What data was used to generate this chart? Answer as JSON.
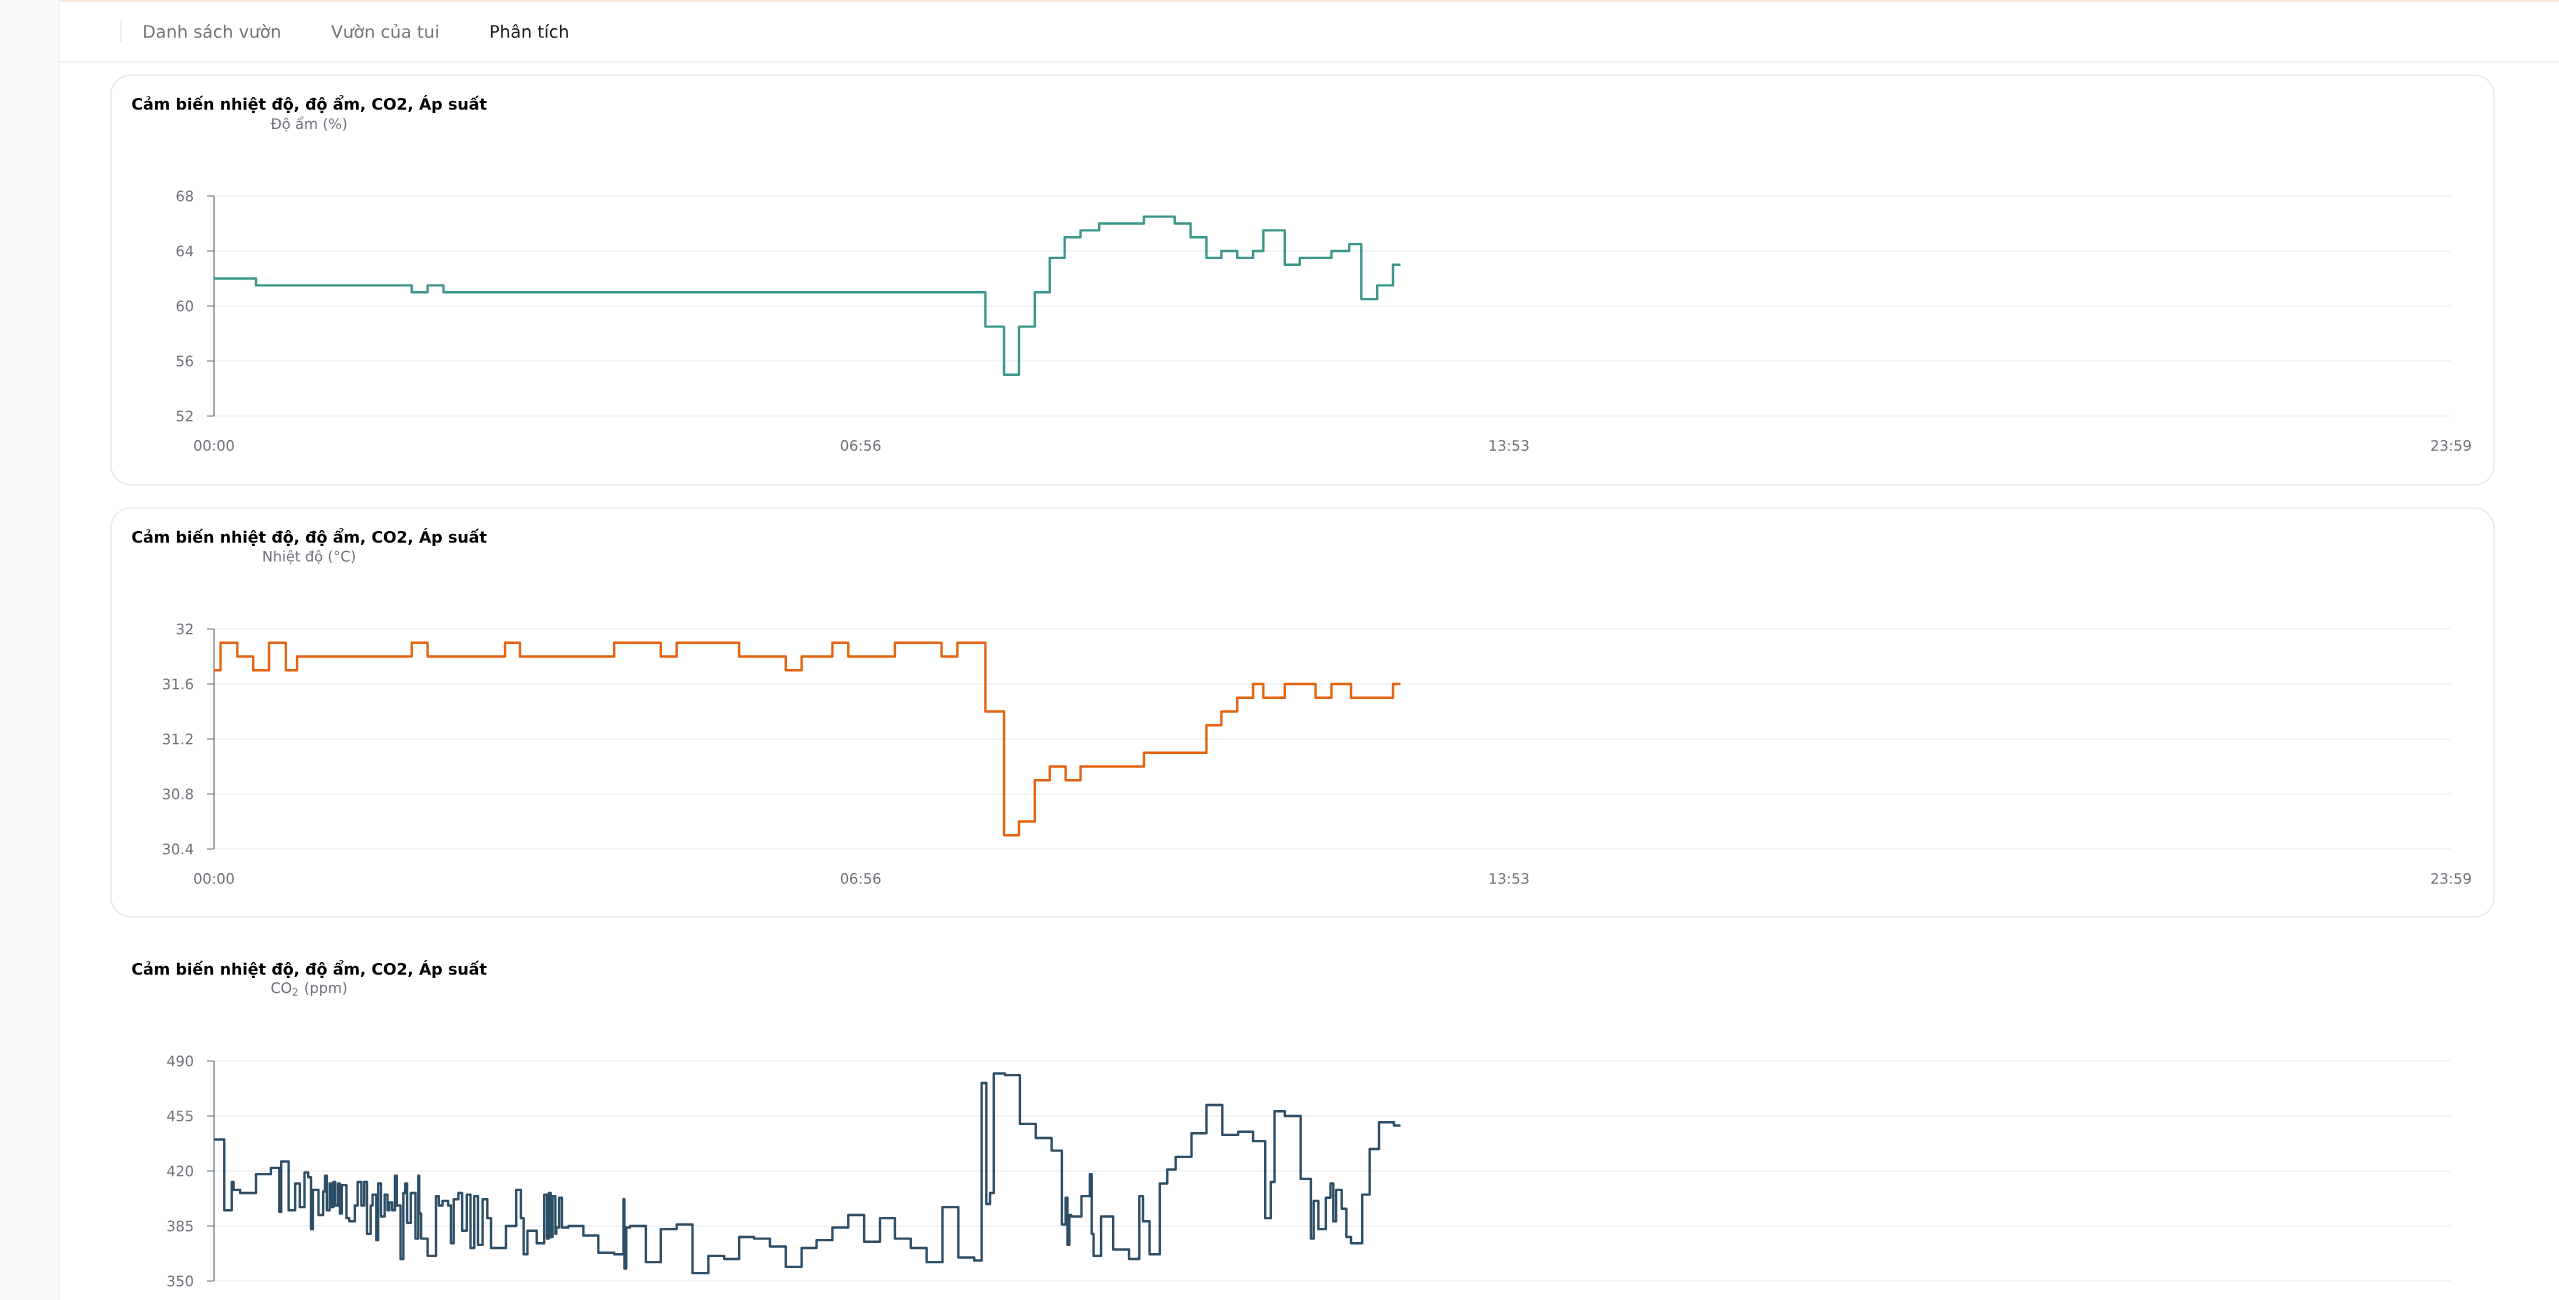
{
  "chart_data": [
    {
      "type": "other",
      "annotations": [
        "Danh sách vườn",
        "Vườn của tui",
        "Phân tích"
      ]
    },
    {
      "type": "step",
      "title": "Cảm biến nhiệt độ, độ ẩm, CO2, Áp suất",
      "ylabel": "Độ ẩm (%)",
      "color": "#3a968a",
      "x": [
        0,
        0.45,
        2.12,
        2.29,
        2.46,
        8.27,
        8.47,
        8.63,
        8.8,
        8.96,
        9.12,
        9.29,
        9.49,
        9.97,
        10.3,
        10.47,
        10.64,
        10.8,
        10.97,
        11.14,
        11.25,
        11.48,
        11.64,
        11.98,
        12.17,
        12.3,
        12.47,
        12.64,
        12.72
      ],
      "values": [
        62,
        61.5,
        61,
        61.5,
        61,
        58.5,
        55,
        58.5,
        61,
        63.5,
        65,
        65.5,
        66,
        66.5,
        66,
        65,
        63.5,
        64,
        63.5,
        64,
        65.5,
        63,
        63.5,
        64,
        64.5,
        60.5,
        61.5,
        63,
        63
      ],
      "xlim": [
        0,
        23.983
      ],
      "xticks": [
        {
          "value": 0,
          "label": "00:00"
        },
        {
          "value": 6.933,
          "label": "06:56"
        },
        {
          "value": 13.883,
          "label": "13:53"
        },
        {
          "value": 23.983,
          "label": "23:59"
        }
      ],
      "ylim": [
        52,
        68
      ],
      "yticks": [
        52,
        56,
        60,
        64,
        68
      ],
      "grid": "y"
    },
    {
      "type": "step",
      "title": "Cảm biến nhiệt độ, độ ẩm, CO2, Áp suất",
      "ylabel": "Nhiệt độ (°C)",
      "color": "#e4630e",
      "x": [
        0,
        0.07,
        0.25,
        0.42,
        0.59,
        0.77,
        0.89,
        2.12,
        2.29,
        3.12,
        3.28,
        4.29,
        4.79,
        4.96,
        5.63,
        6.13,
        6.3,
        6.63,
        6.8,
        7.3,
        7.8,
        7.97,
        8.27,
        8.47,
        8.63,
        8.8,
        8.96,
        9.13,
        9.29,
        9.97,
        10.64,
        10.8,
        10.97,
        11.14,
        11.25,
        11.48,
        11.81,
        11.98,
        12.19,
        12.64,
        12.72
      ],
      "values": [
        31.7,
        31.9,
        31.8,
        31.7,
        31.9,
        31.7,
        31.8,
        31.9,
        31.8,
        31.9,
        31.8,
        31.9,
        31.8,
        31.9,
        31.8,
        31.7,
        31.8,
        31.9,
        31.8,
        31.9,
        31.8,
        31.9,
        31.4,
        30.5,
        30.6,
        30.9,
        31.0,
        30.9,
        31.0,
        31.1,
        31.3,
        31.4,
        31.5,
        31.6,
        31.5,
        31.6,
        31.5,
        31.6,
        31.5,
        31.6,
        31.6
      ],
      "xlim": [
        0,
        23.983
      ],
      "xticks": [
        {
          "value": 0,
          "label": "00:00"
        },
        {
          "value": 6.933,
          "label": "06:56"
        },
        {
          "value": 13.883,
          "label": "13:53"
        },
        {
          "value": 23.983,
          "label": "23:59"
        }
      ],
      "ylim": [
        30.4,
        32
      ],
      "yticks": [
        30.4,
        30.8,
        31.2,
        31.6,
        32
      ],
      "grid": "y"
    },
    {
      "type": "step",
      "title": "Cảm biến nhiệt độ, độ ẩm, CO2, Áp suất",
      "ylabel": "CO$_{2}$ (ppm)",
      "color": "#2c4d66",
      "x": [
        0,
        0.11,
        0.19,
        0.21,
        0.28,
        0.45,
        0.61,
        0.7,
        0.72,
        0.8,
        0.87,
        0.92,
        0.97,
        1.01,
        1.04,
        1.06,
        1.12,
        1.17,
        1.19,
        1.21,
        1.24,
        1.26,
        1.28,
        1.3,
        1.33,
        1.35,
        1.37,
        1.42,
        1.45,
        1.51,
        1.54,
        1.58,
        1.61,
        1.64,
        1.68,
        1.7,
        1.74,
        1.76,
        1.79,
        1.83,
        1.86,
        1.88,
        1.91,
        1.94,
        1.96,
        2.0,
        2.03,
        2.05,
        2.07,
        2.11,
        2.16,
        2.19,
        2.2,
        2.22,
        2.29,
        2.38,
        2.41,
        2.45,
        2.51,
        2.54,
        2.57,
        2.62,
        2.66,
        2.71,
        2.75,
        2.79,
        2.83,
        2.88,
        2.93,
        2.97,
        3.13,
        3.24,
        3.29,
        3.32,
        3.36,
        3.46,
        3.54,
        3.57,
        3.59,
        3.61,
        3.63,
        3.66,
        3.67,
        3.7,
        3.73,
        3.8,
        3.96,
        4.12,
        4.29,
        4.39,
        4.4,
        4.42,
        4.46,
        4.63,
        4.79,
        4.96,
        5.13,
        5.3,
        5.47,
        5.63,
        5.79,
        5.96,
        6.13,
        6.3,
        6.46,
        6.63,
        6.8,
        6.97,
        7.14,
        7.3,
        7.47,
        7.64,
        7.81,
        7.98,
        8.15,
        8.23,
        8.28,
        8.32,
        8.36,
        8.48,
        8.64,
        8.81,
        8.98,
        9.09,
        9.13,
        9.15,
        9.17,
        9.19,
        9.3,
        9.39,
        9.41,
        9.43,
        9.51,
        9.64,
        9.81,
        9.92,
        9.96,
        10.03,
        10.14,
        10.22,
        10.31,
        10.48,
        10.64,
        10.81,
        10.98,
        11.14,
        11.27,
        11.33,
        11.37,
        11.48,
        11.65,
        11.76,
        11.79,
        11.84,
        11.92,
        11.97,
        12.0,
        12.03,
        12.09,
        12.14,
        12.19,
        12.31,
        12.39,
        12.49,
        12.65,
        12.72
      ],
      "values": [
        440,
        395,
        413,
        408,
        406,
        418,
        422,
        394,
        426,
        395,
        412,
        397,
        419,
        416,
        383,
        408,
        392,
        407,
        417,
        395,
        412,
        397,
        413,
        398,
        412,
        393,
        411,
        390,
        388,
        398,
        413,
        398,
        413,
        380,
        398,
        405,
        376,
        412,
        391,
        405,
        395,
        400,
        395,
        417,
        398,
        364,
        406,
        412,
        387,
        406,
        377,
        417,
        393,
        377,
        366,
        404,
        398,
        401,
        398,
        374,
        402,
        406,
        382,
        405,
        371,
        404,
        373,
        402,
        390,
        371,
        385,
        408,
        390,
        367,
        382,
        374,
        405,
        377,
        406,
        378,
        404,
        380,
        384,
        403,
        384,
        385,
        379,
        368,
        367,
        402,
        358,
        384,
        385,
        362,
        383,
        386,
        355,
        366,
        364,
        378,
        377,
        372,
        359,
        371,
        376,
        384,
        392,
        375,
        390,
        377,
        371,
        362,
        397,
        365,
        363,
        476,
        399,
        406,
        482,
        481,
        450,
        441,
        433,
        386,
        403,
        373,
        392,
        391,
        404,
        418,
        380,
        366,
        391,
        370,
        364,
        404,
        388,
        367,
        412,
        421,
        429,
        444,
        462,
        443,
        445,
        439,
        390,
        413,
        458,
        455,
        415,
        377,
        401,
        383,
        403,
        412,
        388,
        408,
        396,
        378,
        374,
        405,
        434,
        451,
        449,
        449
      ],
      "xlim": [
        0,
        23.983
      ],
      "ylim": [
        350,
        490
      ],
      "yticks": [
        350,
        385,
        420,
        455,
        490
      ],
      "grid": "y",
      "tick_labels": "y"
    }
  ]
}
